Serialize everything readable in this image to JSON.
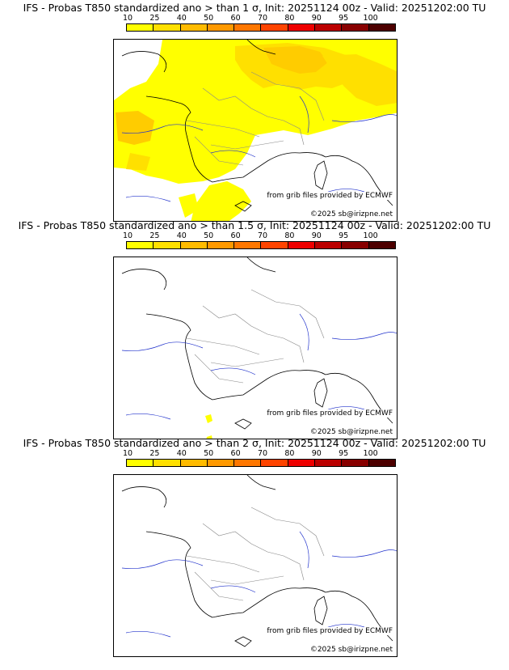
{
  "colorbar": {
    "labels": [
      "10",
      "25",
      "40",
      "50",
      "60",
      "70",
      "80",
      "90",
      "95",
      "100"
    ],
    "colors": [
      "#ffff00",
      "#ffe000",
      "#ffbb00",
      "#ff9900",
      "#ff7700",
      "#ff4400",
      "#ee0000",
      "#bb0000",
      "#880000",
      "#4d0000"
    ]
  },
  "panels": [
    {
      "title": "IFS - Probas T850  standardized ano > than 1 σ, Init: 20251124 00z - Valid: 20251202:00 TU",
      "credit_grib": "from grib files provided by ECMWF",
      "credit_copy": "©2025 sb@irizpne.net"
    },
    {
      "title": "IFS - Probas T850  standardized ano > than 1.5 σ, Init: 20251124 00z - Valid: 20251202:00 TU",
      "credit_grib": "from grib files provided by ECMWF",
      "credit_copy": "©2025 sb@irizpne.net"
    },
    {
      "title": "IFS - Probas T850  standardized ano > than 2 σ, Init: 20251124 00z - Valid: 20251202:00 TU",
      "credit_grib": "from grib files provided by ECMWF",
      "credit_copy": "©2025 sb@irizpne.net"
    }
  ]
}
